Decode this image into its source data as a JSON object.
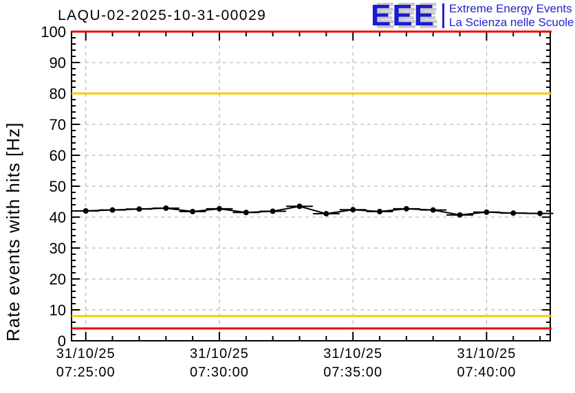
{
  "header": {
    "title": "LAQU-02-2025-10-31-00029"
  },
  "logo": {
    "acronym": "EEE",
    "line1": "Extreme Energy Events",
    "line2": "La Scienza nelle Scuole",
    "blue": "#2222cc",
    "shadow": "#c9c9c9"
  },
  "chart_data": {
    "type": "line",
    "title": "LAQU-02-2025-10-31-00029",
    "xlabel": "",
    "ylabel": "Rate events with hits [Hz]",
    "ylim": [
      0,
      100
    ],
    "y_major_step": 10,
    "y_minor_step": 2,
    "x_axis": {
      "start": "07:24:28",
      "end": "07:42:23",
      "date": "31/10/25",
      "minor_step_sec": 60,
      "major_step_sec": 300,
      "major_tick_times": [
        "07:25:00",
        "07:30:00",
        "07:35:00",
        "07:40:00"
      ]
    },
    "grid": {
      "on": true,
      "color": "#a8a8a8",
      "dash": "5,5"
    },
    "legend": "none",
    "thresholds": [
      {
        "name": "alarm-high",
        "value": 100,
        "color": "#ee0000"
      },
      {
        "name": "warning-high",
        "value": 80,
        "color": "#ffc800"
      },
      {
        "name": "warning-low",
        "value": 8,
        "color": "#ffc800"
      },
      {
        "name": "alarm-low",
        "value": 4,
        "color": "#ee0000"
      }
    ],
    "series": [
      {
        "name": "rate-events-with-hits",
        "color": "#000000",
        "marker": "filled-circle",
        "x_error_sec": 30,
        "points": [
          {
            "time": "07:25:00",
            "value": 42.0
          },
          {
            "time": "07:26:00",
            "value": 42.3
          },
          {
            "time": "07:27:00",
            "value": 42.6
          },
          {
            "time": "07:28:00",
            "value": 42.9
          },
          {
            "time": "07:29:00",
            "value": 41.8
          },
          {
            "time": "07:30:00",
            "value": 42.7
          },
          {
            "time": "07:31:00",
            "value": 41.5
          },
          {
            "time": "07:32:00",
            "value": 41.9
          },
          {
            "time": "07:33:00",
            "value": 43.5
          },
          {
            "time": "07:34:00",
            "value": 41.1
          },
          {
            "time": "07:35:00",
            "value": 42.4
          },
          {
            "time": "07:36:00",
            "value": 41.8
          },
          {
            "time": "07:37:00",
            "value": 42.7
          },
          {
            "time": "07:38:00",
            "value": 42.3
          },
          {
            "time": "07:39:00",
            "value": 40.7
          },
          {
            "time": "07:40:00",
            "value": 41.6
          },
          {
            "time": "07:41:00",
            "value": 41.3
          },
          {
            "time": "07:42:00",
            "value": 41.2
          }
        ]
      }
    ]
  }
}
